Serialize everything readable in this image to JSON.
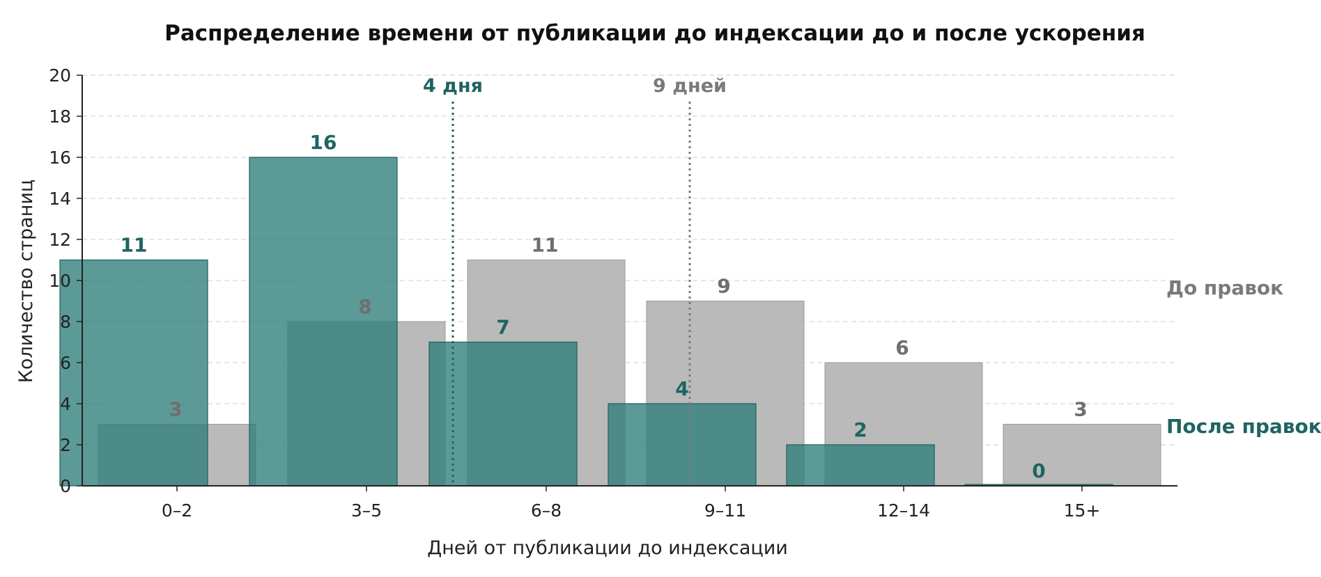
{
  "chart_data": {
    "type": "bar",
    "title": "Распределение времени от публикации до индексации до и после ускорения",
    "xlabel": "Дней от публикации до индексации",
    "ylabel": "Количество страниц",
    "categories": [
      "0–2",
      "3–5",
      "6–8",
      "9–11",
      "12–14",
      "15+"
    ],
    "ylim": [
      0,
      20
    ],
    "yticks": [
      0,
      2,
      4,
      6,
      8,
      10,
      12,
      14,
      16,
      18,
      20
    ],
    "grid": true,
    "series": [
      {
        "name": "До правок",
        "values": [
          3,
          8,
          11,
          9,
          6,
          3
        ],
        "color": "#b2b2b2",
        "label_color": "#6f6f6f"
      },
      {
        "name": "После правок",
        "values": [
          11,
          16,
          7,
          4,
          2,
          0
        ],
        "color": "#2e7e7b",
        "label_color": "#1f6462"
      }
    ],
    "reference_lines": [
      {
        "label": "4 дня",
        "color": "#1f6462"
      },
      {
        "label": "9 дней",
        "color": "#7a7a7a"
      }
    ],
    "legend_position": "right"
  }
}
